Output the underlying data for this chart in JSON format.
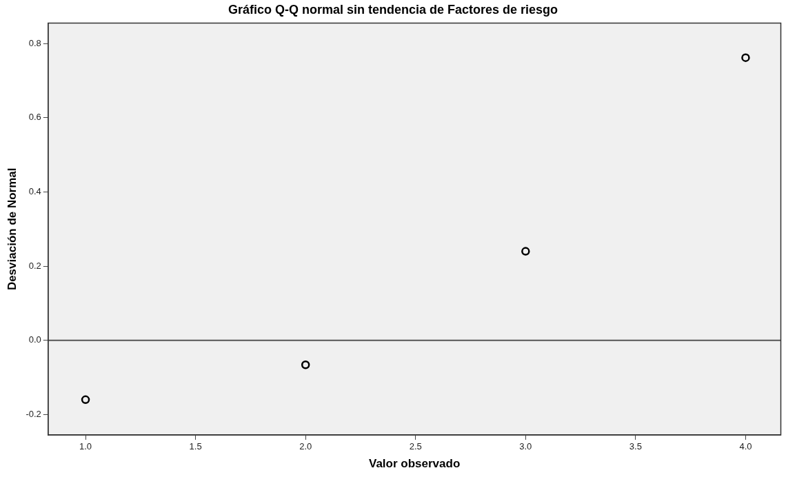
{
  "chart_data": {
    "type": "scatter",
    "title": "Gráfico Q-Q normal sin tendencia de Factores de riesgo",
    "xlabel": "Valor observado",
    "ylabel": "Desviación de Normal",
    "x": [
      1,
      2,
      3,
      4
    ],
    "series": [
      {
        "color": "#000000",
        "values": [
          -0.16,
          -0.066,
          0.24,
          0.762
        ]
      }
    ],
    "xlim": [
      0.83,
      4.16
    ],
    "xticks": [
      {
        "value": 1,
        "label": "1.0"
      },
      {
        "value": 1.5,
        "label": "1.5"
      },
      {
        "value": 2,
        "label": "2.0"
      },
      {
        "value": 2.5,
        "label": "2.5"
      },
      {
        "value": 3,
        "label": "3.0"
      },
      {
        "value": 3.5,
        "label": "3.5"
      },
      {
        "value": 4,
        "label": "4.0"
      }
    ],
    "ylim": [
      -0.255,
      0.855
    ],
    "yticks": [
      {
        "value": -0.2,
        "label": "-0.2"
      },
      {
        "value": 0,
        "label": "0.0"
      },
      {
        "value": 0.2,
        "label": "0.2"
      },
      {
        "value": 0.4,
        "label": "0.4"
      },
      {
        "value": 0.6,
        "label": "0.6"
      },
      {
        "value": 0.8,
        "label": "0.8"
      }
    ],
    "ref_lines": [
      {
        "axis": "y",
        "value": 0,
        "color": "#555555"
      }
    ],
    "grid": false,
    "legend": false,
    "marker": "circle"
  }
}
